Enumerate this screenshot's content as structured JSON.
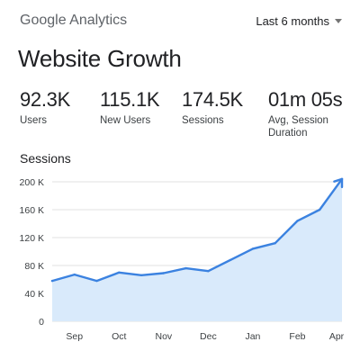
{
  "header": {
    "brand_google": "Google",
    "brand_analytics": "Analytics",
    "date_range": "Last 6 months"
  },
  "page_title": "Website Growth",
  "metrics": [
    {
      "value": "92.3K",
      "label": "Users"
    },
    {
      "value": "115.1K",
      "label": "New Users"
    },
    {
      "value": "174.5K",
      "label": "Sessions"
    },
    {
      "value": "01m 05s",
      "label": "Avg, Session Duration"
    }
  ],
  "chart_title": "Sessions",
  "colors": {
    "line": "#3b82e0",
    "area": "#d9eafb",
    "grid": "#e0e0e0"
  },
  "chart_data": {
    "type": "area",
    "title": "Sessions",
    "x_labels": [
      "Sep",
      "Oct",
      "Nov",
      "Dec",
      "Jan",
      "Feb",
      "Apr"
    ],
    "y_ticks": [
      "200 K",
      "160 K",
      "120 K",
      "80 K",
      "40 K",
      "0"
    ],
    "ylim": [
      0,
      200000
    ],
    "grid": true,
    "points": [
      {
        "x": 0,
        "y": 58000
      },
      {
        "x": 0.5,
        "y": 67000
      },
      {
        "x": 1,
        "y": 58000
      },
      {
        "x": 1.5,
        "y": 70000
      },
      {
        "x": 2,
        "y": 66000
      },
      {
        "x": 2.5,
        "y": 69000
      },
      {
        "x": 3,
        "y": 76000
      },
      {
        "x": 3.5,
        "y": 72000
      },
      {
        "x": 4,
        "y": 88000
      },
      {
        "x": 4.5,
        "y": 104000
      },
      {
        "x": 5,
        "y": 112000
      },
      {
        "x": 5.5,
        "y": 144000
      },
      {
        "x": 6,
        "y": 160000
      },
      {
        "x": 6.5,
        "y": 204000
      }
    ]
  }
}
